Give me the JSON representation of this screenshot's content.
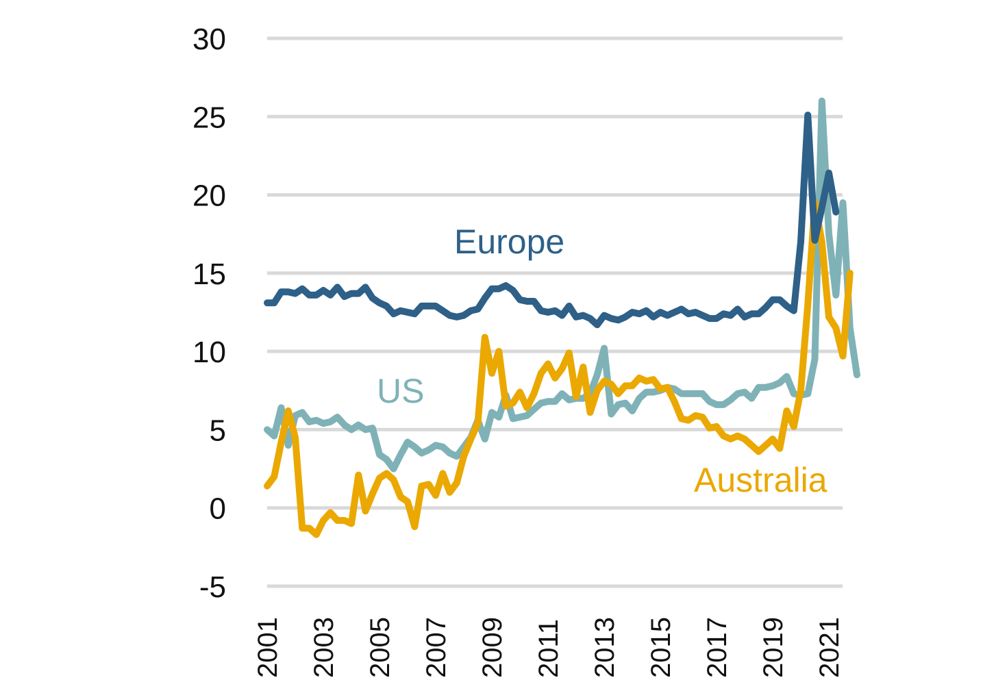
{
  "chart_data": {
    "type": "line",
    "title": "",
    "xlabel": "",
    "ylabel": "",
    "ylim": [
      -5,
      30
    ],
    "yticks": [
      30,
      25,
      20,
      15,
      10,
      5,
      0,
      -5
    ],
    "xlim": [
      2001,
      2021.75
    ],
    "xticks": [
      "2001",
      "2003",
      "2005",
      "2007",
      "2009",
      "2011",
      "2013",
      "2015",
      "2017",
      "2019",
      "2021"
    ],
    "grid": "horizontal",
    "legend": "inline labels",
    "frequency": "quarterly",
    "x_start": 2001.0,
    "series": [
      {
        "name": "Europe",
        "label": "Europe",
        "color": "#2e6088",
        "values": [
          13.1,
          13.1,
          13.8,
          13.8,
          13.7,
          14.0,
          13.6,
          13.6,
          13.9,
          13.6,
          14.1,
          13.5,
          13.7,
          13.7,
          14.1,
          13.4,
          13.1,
          12.9,
          12.4,
          12.6,
          12.5,
          12.4,
          12.9,
          12.9,
          12.9,
          12.6,
          12.3,
          12.2,
          12.3,
          12.6,
          12.7,
          13.4,
          14.0,
          14.0,
          14.2,
          13.9,
          13.3,
          13.2,
          13.2,
          12.6,
          12.5,
          12.6,
          12.3,
          12.9,
          12.2,
          12.3,
          12.1,
          11.7,
          12.3,
          12.1,
          12.0,
          12.2,
          12.5,
          12.4,
          12.6,
          12.2,
          12.5,
          12.3,
          12.5,
          12.7,
          12.4,
          12.5,
          12.3,
          12.1,
          12.1,
          12.4,
          12.3,
          12.7,
          12.2,
          12.4,
          12.4,
          12.8,
          13.3,
          13.3,
          12.9,
          12.6,
          17.0,
          25.1,
          17.1,
          19.2,
          21.4,
          18.9
        ]
      },
      {
        "name": "US",
        "label": "US",
        "color": "#7fb2b7",
        "values": [
          5.0,
          4.6,
          6.4,
          4.0,
          5.9,
          6.1,
          5.5,
          5.6,
          5.4,
          5.5,
          5.8,
          5.3,
          5.0,
          5.3,
          5.0,
          5.1,
          3.4,
          3.1,
          2.5,
          3.4,
          4.2,
          3.9,
          3.5,
          3.7,
          4.0,
          3.9,
          3.5,
          3.3,
          3.9,
          4.5,
          5.6,
          4.4,
          6.1,
          5.8,
          7.2,
          5.7,
          5.8,
          5.9,
          6.3,
          6.7,
          6.8,
          6.8,
          7.3,
          6.9,
          7.0,
          7.0,
          7.3,
          8.5,
          10.2,
          6.0,
          6.6,
          6.7,
          6.2,
          7.0,
          7.4,
          7.4,
          7.5,
          7.7,
          7.6,
          7.3,
          7.3,
          7.3,
          7.3,
          6.8,
          6.6,
          6.6,
          6.9,
          7.3,
          7.4,
          7.0,
          7.7,
          7.7,
          7.8,
          8.0,
          8.4,
          7.3,
          7.2,
          7.3,
          9.5,
          26.0,
          17.5,
          13.6,
          19.5,
          11.5,
          8.5
        ]
      },
      {
        "name": "Australia",
        "label": "Australia",
        "color": "#eaa800",
        "values": [
          1.4,
          2.0,
          4.2,
          6.2,
          4.5,
          -1.3,
          -1.3,
          -1.7,
          -0.8,
          -0.3,
          -0.8,
          -0.8,
          -1.0,
          2.1,
          -0.2,
          0.9,
          1.9,
          2.2,
          1.8,
          0.7,
          0.4,
          -1.2,
          1.4,
          1.5,
          0.8,
          2.2,
          1.0,
          1.6,
          3.3,
          4.4,
          5.4,
          10.9,
          8.6,
          10.0,
          6.5,
          6.7,
          7.4,
          6.4,
          7.3,
          8.6,
          9.2,
          8.3,
          8.9,
          9.9,
          7.1,
          9.0,
          6.1,
          7.5,
          8.1,
          7.9,
          7.3,
          7.8,
          7.8,
          8.3,
          8.1,
          8.2,
          7.6,
          7.7,
          6.8,
          5.7,
          5.6,
          5.9,
          5.8,
          5.1,
          5.2,
          4.6,
          4.4,
          4.6,
          4.4,
          4.0,
          3.6,
          4.0,
          4.4,
          3.8,
          6.2,
          5.2,
          7.5,
          13.0,
          19.5,
          17.0,
          12.2,
          11.5,
          9.7,
          15.0
        ]
      }
    ]
  }
}
